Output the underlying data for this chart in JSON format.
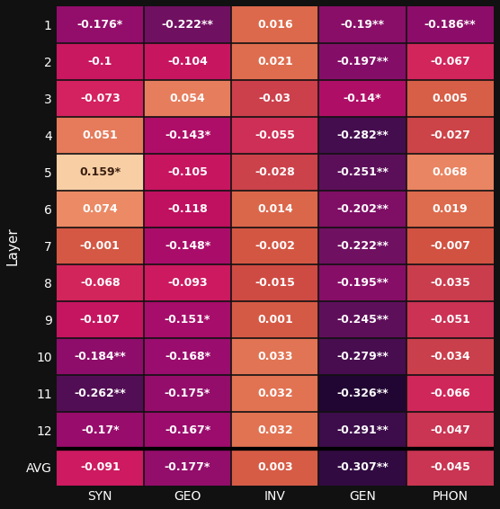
{
  "rows": [
    "1",
    "2",
    "3",
    "4",
    "5",
    "6",
    "7",
    "8",
    "9",
    "10",
    "11",
    "12",
    "AVG"
  ],
  "cols": [
    "SYN",
    "GEO",
    "INV",
    "GEN",
    "PHON"
  ],
  "values": [
    [
      -0.176,
      -0.222,
      0.016,
      -0.19,
      -0.186
    ],
    [
      -0.1,
      -0.104,
      0.021,
      -0.197,
      -0.067
    ],
    [
      -0.073,
      0.054,
      -0.03,
      -0.14,
      0.005
    ],
    [
      0.051,
      -0.143,
      -0.055,
      -0.282,
      -0.027
    ],
    [
      0.159,
      -0.105,
      -0.028,
      -0.251,
      0.068
    ],
    [
      0.074,
      -0.118,
      0.014,
      -0.202,
      0.019
    ],
    [
      -0.001,
      -0.148,
      -0.002,
      -0.222,
      -0.007
    ],
    [
      -0.068,
      -0.093,
      -0.015,
      -0.195,
      -0.035
    ],
    [
      -0.107,
      -0.151,
      0.001,
      -0.245,
      -0.051
    ],
    [
      -0.184,
      -0.168,
      0.033,
      -0.279,
      -0.034
    ],
    [
      -0.262,
      -0.175,
      0.032,
      -0.326,
      -0.066
    ],
    [
      -0.17,
      -0.167,
      0.032,
      -0.291,
      -0.047
    ],
    [
      -0.091,
      -0.177,
      0.003,
      -0.307,
      -0.045
    ]
  ],
  "labels": [
    [
      "-0.176*",
      "-0.222**",
      "0.016",
      "-0.19**",
      "-0.186**"
    ],
    [
      "-0.1",
      "-0.104",
      "0.021",
      "-0.197**",
      "-0.067"
    ],
    [
      "-0.073",
      "0.054",
      "-0.03",
      "-0.14*",
      "0.005"
    ],
    [
      "0.051",
      "-0.143*",
      "-0.055",
      "-0.282**",
      "-0.027"
    ],
    [
      "0.159*",
      "-0.105",
      "-0.028",
      "-0.251**",
      "0.068"
    ],
    [
      "0.074",
      "-0.118",
      "0.014",
      "-0.202**",
      "0.019"
    ],
    [
      "-0.001",
      "-0.148*",
      "-0.002",
      "-0.222**",
      "-0.007"
    ],
    [
      "-0.068",
      "-0.093",
      "-0.015",
      "-0.195**",
      "-0.035"
    ],
    [
      "-0.107",
      "-0.151*",
      "0.001",
      "-0.245**",
      "-0.051"
    ],
    [
      "-0.184**",
      "-0.168*",
      "0.033",
      "-0.279**",
      "-0.034"
    ],
    [
      "-0.262**",
      "-0.175*",
      "0.032",
      "-0.326**",
      "-0.066"
    ],
    [
      "-0.17*",
      "-0.167*",
      "0.032",
      "-0.291**",
      "-0.047"
    ],
    [
      "-0.091",
      "-0.177*",
      "0.003",
      "-0.307**",
      "-0.045"
    ]
  ],
  "ylabel": "Layer",
  "vmin": -0.35,
  "vmax": 0.2,
  "label_fontsize": 9.0,
  "tick_fontsize": 10,
  "axis_label_fontsize": 11,
  "background_color": "#111111",
  "text_light": "#ffffff",
  "text_dark": "#3a2010",
  "avg_sep_linewidth": 3.0,
  "colormap_nodes": [
    [
      0.0,
      "#0d0221"
    ],
    [
      0.1,
      "#3b0c4a"
    ],
    [
      0.22,
      "#6b1060"
    ],
    [
      0.34,
      "#9e0c6e"
    ],
    [
      0.42,
      "#c01060"
    ],
    [
      0.5,
      "#d42060"
    ],
    [
      0.56,
      "#c83850"
    ],
    [
      0.62,
      "#d05040"
    ],
    [
      0.68,
      "#df7050"
    ],
    [
      0.75,
      "#e88060"
    ],
    [
      0.82,
      "#f0a070"
    ],
    [
      0.88,
      "#f4bb88"
    ],
    [
      0.93,
      "#f8d0a8"
    ],
    [
      0.97,
      "#fce0c0"
    ],
    [
      1.0,
      "#feeedd"
    ]
  ]
}
